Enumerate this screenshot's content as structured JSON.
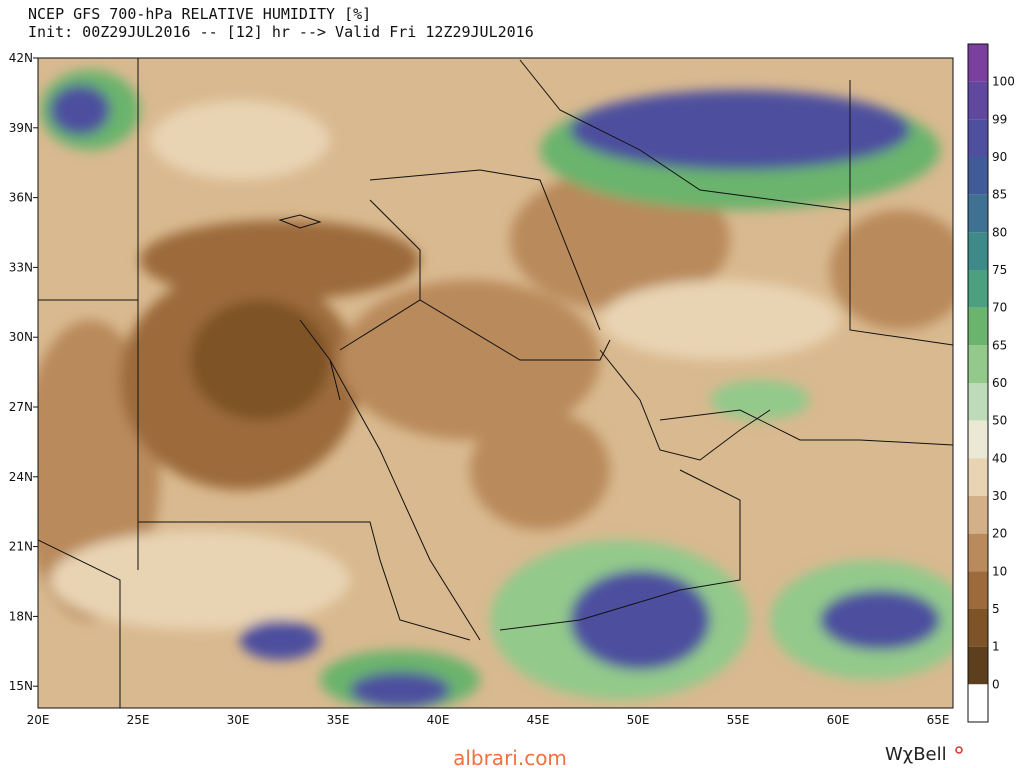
{
  "header": {
    "title": "NCEP GFS 700-hPa RELATIVE HUMIDITY [%]",
    "subtitle": "Init: 00Z29JUL2016 -- [12] hr --> Valid Fri 12Z29JUL2016"
  },
  "map": {
    "lat_labels": [
      "42N",
      "39N",
      "36N",
      "33N",
      "30N",
      "27N",
      "24N",
      "21N",
      "18N",
      "15N"
    ],
    "lon_labels": [
      "20E",
      "25E",
      "30E",
      "35E",
      "40E",
      "45E",
      "50E",
      "55E",
      "60E",
      "65E"
    ]
  },
  "colorbar": {
    "labels": [
      "100",
      "99",
      "90",
      "85",
      "80",
      "75",
      "70",
      "65",
      "60",
      "50",
      "40",
      "30",
      "20",
      "10",
      "5",
      "1",
      "0"
    ],
    "colors": [
      "#7b3f9e",
      "#60489f",
      "#4e4f9e",
      "#405b97",
      "#3f7193",
      "#3e8a88",
      "#4c9f7f",
      "#6bb46d",
      "#93c98b",
      "#bddbb8",
      "#ebe8d6",
      "#e8d3b2",
      "#d3b087",
      "#b98a5b",
      "#9c6a3b",
      "#7e5328",
      "#5e3f1d",
      "#ffffff"
    ]
  },
  "footer": {
    "watermark": "albrari.com",
    "logo": "WχBell"
  }
}
